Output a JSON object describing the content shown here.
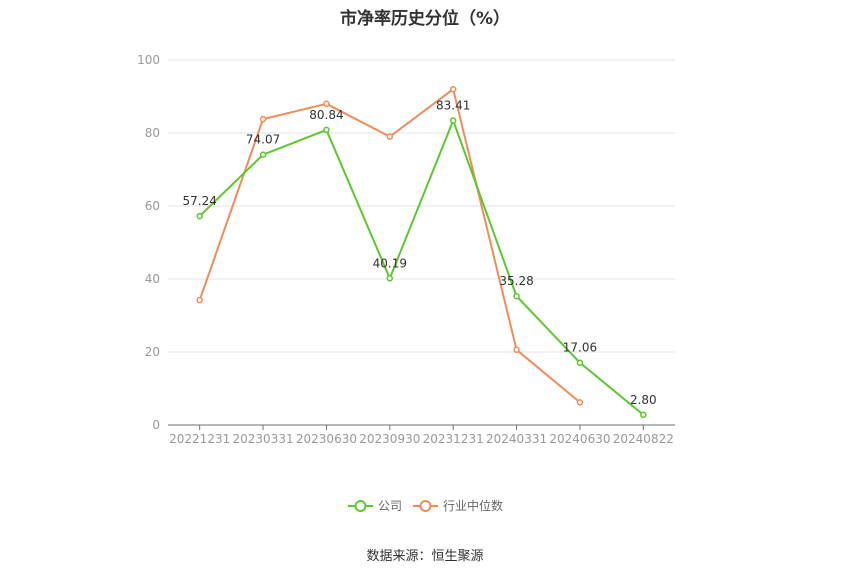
{
  "chart_data": {
    "type": "line",
    "title": "市净率历史分位（%）",
    "categories": [
      "20221231",
      "20230331",
      "20230630",
      "20230930",
      "20231231",
      "20240331",
      "20240630",
      "20240822"
    ],
    "ylim": [
      0,
      100
    ],
    "yticks": [
      0,
      20,
      40,
      60,
      80,
      100
    ],
    "grid": true,
    "legend_position": "bottom",
    "series": [
      {
        "name": "公司",
        "color": "#5cc72e",
        "values": [
          57.24,
          74.07,
          80.84,
          40.19,
          83.41,
          35.28,
          17.06,
          2.8
        ],
        "labels": [
          "57.24",
          "74.07",
          "80.84",
          "40.19",
          "83.41",
          "35.28",
          "17.06",
          "2.80"
        ]
      },
      {
        "name": "行业中位数",
        "color": "#f08c5a",
        "values": [
          34.2,
          83.8,
          88.0,
          79.0,
          92.0,
          20.6,
          6.2,
          null
        ]
      }
    ]
  },
  "footer": {
    "source": "数据来源：恒生聚源"
  }
}
